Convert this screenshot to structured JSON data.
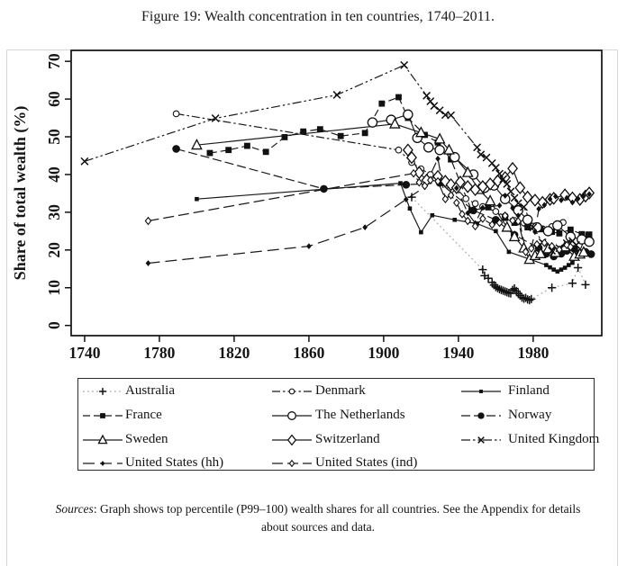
{
  "figure": {
    "title": "Figure 19: Wealth concentration in ten countries, 1740–2011."
  },
  "sources": {
    "prefix": "Sources",
    "rest": ": Graph shows top percentile (P99–100) wealth shares for all countries. See the Appendix for details",
    "line2": "about sources and data."
  },
  "chart_data": {
    "type": "line",
    "title": "Wealth concentration in ten countries, 1740-2011",
    "xlabel": "",
    "ylabel": "Share of total wealth (%)",
    "x_ticks": [
      1740,
      1780,
      1820,
      1860,
      1900,
      1940,
      1980
    ],
    "y_ticks": [
      0,
      10,
      20,
      30,
      40,
      50,
      60,
      70
    ],
    "xlim": [
      1732.8,
      2016.7
    ],
    "ylim": [
      -2.7,
      72.9
    ],
    "grid": false,
    "legend_position": "bottom",
    "series": [
      {
        "name": "Australia",
        "marker": "plus",
        "dash": [
          1.8,
          3.2
        ],
        "line_color": "#a8a8a8",
        "points": [
          [
            1915,
            34
          ],
          [
            1953,
            14.8
          ],
          [
            1954,
            13.2
          ],
          [
            1956,
            12.5
          ],
          [
            1958,
            11.4
          ],
          [
            1959,
            10.7
          ],
          [
            1960,
            10.2
          ],
          [
            1961,
            9.9
          ],
          [
            1962,
            9.6
          ],
          [
            1963,
            9.4
          ],
          [
            1964,
            9.2
          ],
          [
            1965,
            9.0
          ],
          [
            1966,
            8.8
          ],
          [
            1967,
            8.6
          ],
          [
            1968,
            8.5
          ],
          [
            1969,
            9.4
          ],
          [
            1970,
            9.8
          ],
          [
            1971,
            9.1
          ],
          [
            1972,
            8.5
          ],
          [
            1973,
            7.9
          ],
          [
            1974,
            7.4
          ],
          [
            1975,
            7.1
          ],
          [
            1976,
            7.3
          ],
          [
            1977,
            6.9
          ],
          [
            1978,
            6.7
          ],
          [
            1979,
            7.0
          ],
          [
            1990,
            10.0
          ],
          [
            2001,
            11.2
          ],
          [
            2004,
            15.3
          ],
          [
            2008,
            10.8
          ]
        ]
      },
      {
        "name": "Denmark",
        "marker": "circle-small-open",
        "dash": [
          9,
          3,
          2.5,
          3
        ],
        "line_color": "#1a1a1a",
        "points": [
          [
            1789,
            56.1
          ],
          [
            1908,
            46.5
          ],
          [
            1915,
            43.2
          ],
          [
            1920,
            41.5
          ],
          [
            1925,
            40.0
          ],
          [
            1930,
            38.3
          ],
          [
            1934,
            37.2
          ],
          [
            1939,
            36.3
          ],
          [
            1944,
            33.6
          ],
          [
            1949,
            32.3
          ],
          [
            1953,
            31.5
          ],
          [
            1960,
            30.2
          ],
          [
            1965,
            29.0
          ],
          [
            1970,
            27.8
          ],
          [
            1975,
            27.2
          ],
          [
            1980,
            26.3
          ],
          [
            1985,
            25.6
          ],
          [
            1990,
            26.2
          ],
          [
            1993,
            26.9
          ],
          [
            1996,
            27.3
          ]
        ]
      },
      {
        "name": "Finland",
        "marker": "square-small-filled",
        "dash": null,
        "line_color": "#1a1a1a",
        "points": [
          [
            1800,
            33.5
          ],
          [
            1909,
            37.7
          ],
          [
            1914,
            31.0
          ],
          [
            1920,
            24.7
          ],
          [
            1926,
            29.2
          ],
          [
            1938,
            28.0
          ],
          [
            1950,
            27.0
          ],
          [
            1960,
            25.0
          ],
          [
            1967,
            19.5
          ],
          [
            1987,
            16.0
          ],
          [
            1989,
            15.4
          ],
          [
            1991,
            14.8
          ],
          [
            1993,
            14.3
          ],
          [
            1995,
            14.8
          ],
          [
            1997,
            15.3
          ],
          [
            1999,
            16.0
          ],
          [
            2001,
            16.6
          ],
          [
            2004,
            18.5
          ],
          [
            2007,
            22.4
          ],
          [
            2009,
            24.3
          ]
        ]
      },
      {
        "name": "France",
        "marker": "square-filled",
        "dash": [
          8,
          4
        ],
        "line_color": "#1a1a1a",
        "points": [
          [
            1807,
            45.7
          ],
          [
            1817,
            46.5
          ],
          [
            1827,
            47.6
          ],
          [
            1837,
            46.0
          ],
          [
            1847,
            49.9
          ],
          [
            1857,
            51.4
          ],
          [
            1866,
            52.0
          ],
          [
            1877,
            50.2
          ],
          [
            1890,
            51.0
          ],
          [
            1899,
            58.8
          ],
          [
            1908,
            60.5
          ],
          [
            1913,
            55.0
          ],
          [
            1922,
            50.5
          ],
          [
            1929,
            48.5
          ],
          [
            1936,
            44.0
          ],
          [
            1947,
            30.5
          ],
          [
            1956,
            31.3
          ],
          [
            1965,
            28.5
          ],
          [
            1970,
            27.2
          ],
          [
            1977,
            26.0
          ],
          [
            1984,
            25.5
          ],
          [
            1990,
            24.8
          ],
          [
            1994,
            24.4
          ],
          [
            2000,
            25.4
          ],
          [
            2006,
            24.2
          ],
          [
            2010,
            24.1
          ]
        ]
      },
      {
        "name": "The Netherlands",
        "marker": "circle-open",
        "dash": null,
        "line_color": "#1a1a1a",
        "points": [
          [
            1894,
            53.8
          ],
          [
            1904,
            54.5
          ],
          [
            1913,
            55.9
          ],
          [
            1918,
            49.7
          ],
          [
            1924,
            47.2
          ],
          [
            1930,
            46.5
          ],
          [
            1938,
            44.6
          ],
          [
            1948,
            40.0
          ],
          [
            1954,
            36.5
          ],
          [
            1959,
            37.1
          ],
          [
            1965,
            33.5
          ],
          [
            1972,
            30.5
          ],
          [
            1977,
            28.0
          ],
          [
            1982,
            26.0
          ],
          [
            1988,
            25.0
          ],
          [
            1993,
            26.5
          ],
          [
            2000,
            23.5
          ],
          [
            2006,
            22.8
          ],
          [
            2010,
            22.2
          ]
        ]
      },
      {
        "name": "Norway",
        "marker": "circle-filled",
        "dash": [
          10,
          4
        ],
        "line_color": "#1a1a1a",
        "points": [
          [
            1789,
            46.8
          ],
          [
            1868,
            36.2
          ],
          [
            1912,
            37.3
          ],
          [
            1930,
            37.8
          ],
          [
            1948,
            30.5
          ],
          [
            1960,
            28.0
          ],
          [
            1970,
            24.0
          ],
          [
            1983,
            20.5
          ],
          [
            1987,
            19.0
          ],
          [
            1991,
            18.3
          ],
          [
            1995,
            19.0
          ],
          [
            1998,
            19.8
          ],
          [
            2002,
            20.3
          ],
          [
            2005,
            19.2
          ],
          [
            2008,
            19.5
          ],
          [
            2011,
            18.9
          ]
        ]
      },
      {
        "name": "Sweden",
        "marker": "triangle-open",
        "dash": null,
        "line_color": "#1a1a1a",
        "points": [
          [
            1800,
            47.8
          ],
          [
            1906,
            53.4
          ],
          [
            1920,
            51.1
          ],
          [
            1930,
            49.4
          ],
          [
            1935,
            46.5
          ],
          [
            1945,
            40.5
          ],
          [
            1951,
            36.0
          ],
          [
            1957,
            33.0
          ],
          [
            1966,
            26.0
          ],
          [
            1970,
            23.5
          ],
          [
            1975,
            20.5
          ],
          [
            1978,
            17.5
          ],
          [
            1981,
            18.5
          ],
          [
            1984,
            19.0
          ],
          [
            1988,
            20.3
          ],
          [
            1992,
            19.3
          ],
          [
            1997,
            20.8
          ],
          [
            2002,
            18.3
          ],
          [
            2005,
            18.9
          ],
          [
            2007,
            19.4
          ]
        ]
      },
      {
        "name": "Switzerland",
        "marker": "diamond-open",
        "dash": null,
        "line_color": "#1a1a1a",
        "points": [
          [
            1913,
            46.5
          ],
          [
            1915,
            44.5
          ],
          [
            1919,
            40.5
          ],
          [
            1923,
            38.5
          ],
          [
            1929,
            39.5
          ],
          [
            1933,
            38.2
          ],
          [
            1936,
            37.3
          ],
          [
            1939,
            36.5
          ],
          [
            1941,
            38.0
          ],
          [
            1945,
            36.8
          ],
          [
            1949,
            36.0
          ],
          [
            1953,
            36.8
          ],
          [
            1957,
            37.5
          ],
          [
            1961,
            38.3
          ],
          [
            1965,
            39.2
          ],
          [
            1969,
            41.6
          ],
          [
            1973,
            36.5
          ],
          [
            1977,
            34.0
          ],
          [
            1981,
            33.2
          ],
          [
            1985,
            32.6
          ],
          [
            1989,
            33.4
          ],
          [
            1991,
            33.7
          ],
          [
            1997,
            34.6
          ],
          [
            2001,
            33.8
          ],
          [
            2005,
            33.4
          ],
          [
            2008,
            34.3
          ],
          [
            2010,
            35.1
          ]
        ]
      },
      {
        "name": "United Kingdom",
        "marker": "x",
        "dash": [
          10,
          3,
          2.5,
          3,
          2.5,
          3
        ],
        "line_color": "#1a1a1a",
        "points": [
          [
            1740,
            43.5
          ],
          [
            1810,
            54.9
          ],
          [
            1875,
            61.1
          ],
          [
            1911,
            69.0
          ],
          [
            1923,
            60.9
          ],
          [
            1925,
            59.4
          ],
          [
            1927,
            58.2
          ],
          [
            1930,
            57.0
          ],
          [
            1933,
            55.8
          ],
          [
            1936,
            55.7
          ],
          [
            1950,
            47.2
          ],
          [
            1952,
            45.3
          ],
          [
            1955,
            44.5
          ],
          [
            1958,
            43.0
          ],
          [
            1960,
            41.8
          ],
          [
            1962,
            40.2
          ],
          [
            1964,
            38.8
          ],
          [
            1966,
            37.5
          ],
          [
            1968,
            35.5
          ],
          [
            1970,
            33.8
          ],
          [
            1972,
            32.4
          ],
          [
            1975,
            31.4
          ],
          [
            1980,
            26.0
          ],
          [
            1985,
            22.0
          ],
          [
            1990,
            19.8
          ],
          [
            1994,
            20.5
          ],
          [
            1998,
            21.8
          ],
          [
            2001,
            22.4
          ],
          [
            2003,
            21.3
          ]
        ]
      },
      {
        "name": "United States (hh)",
        "marker": "diamond-small-filled",
        "dash": [
          13,
          6
        ],
        "line_color": "#1a1a1a",
        "points": [
          [
            1774,
            16.5
          ],
          [
            1860,
            21.0
          ],
          [
            1890,
            26.0
          ],
          [
            1912,
            33.4
          ],
          [
            1922,
            36.7
          ],
          [
            1929,
            44.2
          ],
          [
            1933,
            33.3
          ],
          [
            1939,
            36.4
          ],
          [
            1945,
            29.8
          ],
          [
            1949,
            27.1
          ],
          [
            1953,
            31.2
          ],
          [
            1962,
            31.8
          ],
          [
            1965,
            34.4
          ],
          [
            1969,
            31.1
          ],
          [
            1972,
            29.1
          ],
          [
            1976,
            19.9
          ],
          [
            1979,
            20.5
          ],
          [
            1981,
            24.8
          ],
          [
            1983,
            30.9
          ],
          [
            1986,
            31.9
          ],
          [
            1989,
            33.5
          ],
          [
            1992,
            34.2
          ],
          [
            1995,
            33.2
          ],
          [
            1998,
            33.8
          ],
          [
            2001,
            32.6
          ],
          [
            2004,
            33.6
          ],
          [
            2007,
            34.3
          ],
          [
            2010,
            34.8
          ]
        ]
      },
      {
        "name": "United States (ind)",
        "marker": "diamond-small-open",
        "dash": [
          12,
          5
        ],
        "line_color": "#1a1a1a",
        "points": [
          [
            1774,
            27.7
          ],
          [
            1916,
            40.3
          ],
          [
            1919,
            37.9
          ],
          [
            1922,
            37.0
          ],
          [
            1925,
            38.5
          ],
          [
            1929,
            38.2
          ],
          [
            1933,
            33.5
          ],
          [
            1936,
            34.5
          ],
          [
            1939,
            32.5
          ],
          [
            1942,
            29.5
          ],
          [
            1945,
            27.7
          ],
          [
            1949,
            26.3
          ],
          [
            1953,
            28.3
          ],
          [
            1958,
            26.7
          ],
          [
            1962,
            27.2
          ],
          [
            1965,
            29.1
          ],
          [
            1969,
            27.8
          ],
          [
            1972,
            27.6
          ],
          [
            1976,
            19.5
          ],
          [
            1979,
            20.4
          ],
          [
            1982,
            21.5
          ],
          [
            1986,
            21.9
          ],
          [
            1990,
            21.0
          ],
          [
            1994,
            20.1
          ],
          [
            1998,
            21.3
          ],
          [
            2000,
            20.8
          ]
        ]
      }
    ]
  }
}
